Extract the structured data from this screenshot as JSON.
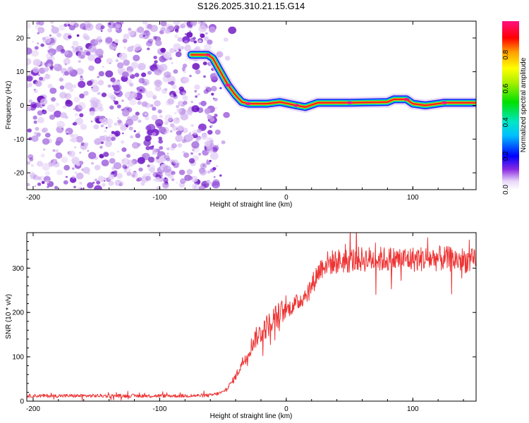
{
  "chart_data": [
    {
      "type": "heatmap",
      "title": "S126.2025.310.21.15.G14",
      "xlabel": "Height of straight line (km)",
      "ylabel": "Frequency (Hz)",
      "xlim": [
        -205,
        150
      ],
      "ylim": [
        -25,
        25
      ],
      "xticks": [
        -200,
        -100,
        0,
        100
      ],
      "yticks": [
        -20,
        -10,
        0,
        10,
        20
      ],
      "ridge": [
        {
          "x": -75,
          "y": 15
        },
        {
          "x": -62,
          "y": 15
        },
        {
          "x": -58,
          "y": 14
        },
        {
          "x": -52,
          "y": 10
        },
        {
          "x": -46,
          "y": 6
        },
        {
          "x": -40,
          "y": 3
        },
        {
          "x": -35,
          "y": 1
        },
        {
          "x": -30,
          "y": 0.5
        },
        {
          "x": -15,
          "y": 0.5
        },
        {
          "x": -5,
          "y": 1
        },
        {
          "x": 8,
          "y": 0
        },
        {
          "x": 15,
          "y": -0.5
        },
        {
          "x": 25,
          "y": 0.8
        },
        {
          "x": 50,
          "y": 0.8
        },
        {
          "x": 80,
          "y": 1
        },
        {
          "x": 85,
          "y": 1.8
        },
        {
          "x": 95,
          "y": 1.8
        },
        {
          "x": 100,
          "y": 0.5
        },
        {
          "x": 110,
          "y": 0
        },
        {
          "x": 125,
          "y": 0.8
        },
        {
          "x": 150,
          "y": 0.8
        }
      ],
      "noise_region_x": [
        -205,
        -55
      ],
      "colorbar": {
        "label": "Normalized spectral amplitude",
        "range": [
          0,
          1
        ],
        "ticks": [
          "0.0",
          "0.2",
          "0.4",
          "0.6",
          "0.8"
        ]
      }
    },
    {
      "type": "line",
      "xlabel": "Height of straight line (km)",
      "ylabel": "SNR (10 * v/v)",
      "xlim": [
        -205,
        150
      ],
      "ylim": [
        0,
        380
      ],
      "xticks": [
        -200,
        -100,
        0,
        100
      ],
      "yticks": [
        0,
        100,
        200,
        300
      ],
      "color": "#ee3333",
      "series": [
        {
          "name": "SNR",
          "points": [
            {
              "x": -205,
              "y": 12
            },
            {
              "x": -180,
              "y": 12
            },
            {
              "x": -160,
              "y": 12
            },
            {
              "x": -140,
              "y": 12
            },
            {
              "x": -120,
              "y": 12
            },
            {
              "x": -100,
              "y": 12
            },
            {
              "x": -80,
              "y": 12
            },
            {
              "x": -60,
              "y": 13
            },
            {
              "x": -50,
              "y": 20
            },
            {
              "x": -45,
              "y": 35
            },
            {
              "x": -40,
              "y": 55
            },
            {
              "x": -35,
              "y": 85
            },
            {
              "x": -30,
              "y": 110
            },
            {
              "x": -25,
              "y": 140
            },
            {
              "x": -20,
              "y": 155
            },
            {
              "x": -15,
              "y": 170
            },
            {
              "x": -10,
              "y": 185
            },
            {
              "x": -5,
              "y": 195
            },
            {
              "x": 0,
              "y": 205
            },
            {
              "x": 5,
              "y": 215
            },
            {
              "x": 10,
              "y": 225
            },
            {
              "x": 15,
              "y": 240
            },
            {
              "x": 20,
              "y": 260
            },
            {
              "x": 25,
              "y": 290
            },
            {
              "x": 30,
              "y": 310
            },
            {
              "x": 40,
              "y": 315
            },
            {
              "x": 60,
              "y": 320
            },
            {
              "x": 80,
              "y": 320
            },
            {
              "x": 100,
              "y": 320
            },
            {
              "x": 120,
              "y": 322
            },
            {
              "x": 140,
              "y": 318
            },
            {
              "x": 150,
              "y": 315
            }
          ]
        }
      ]
    }
  ]
}
